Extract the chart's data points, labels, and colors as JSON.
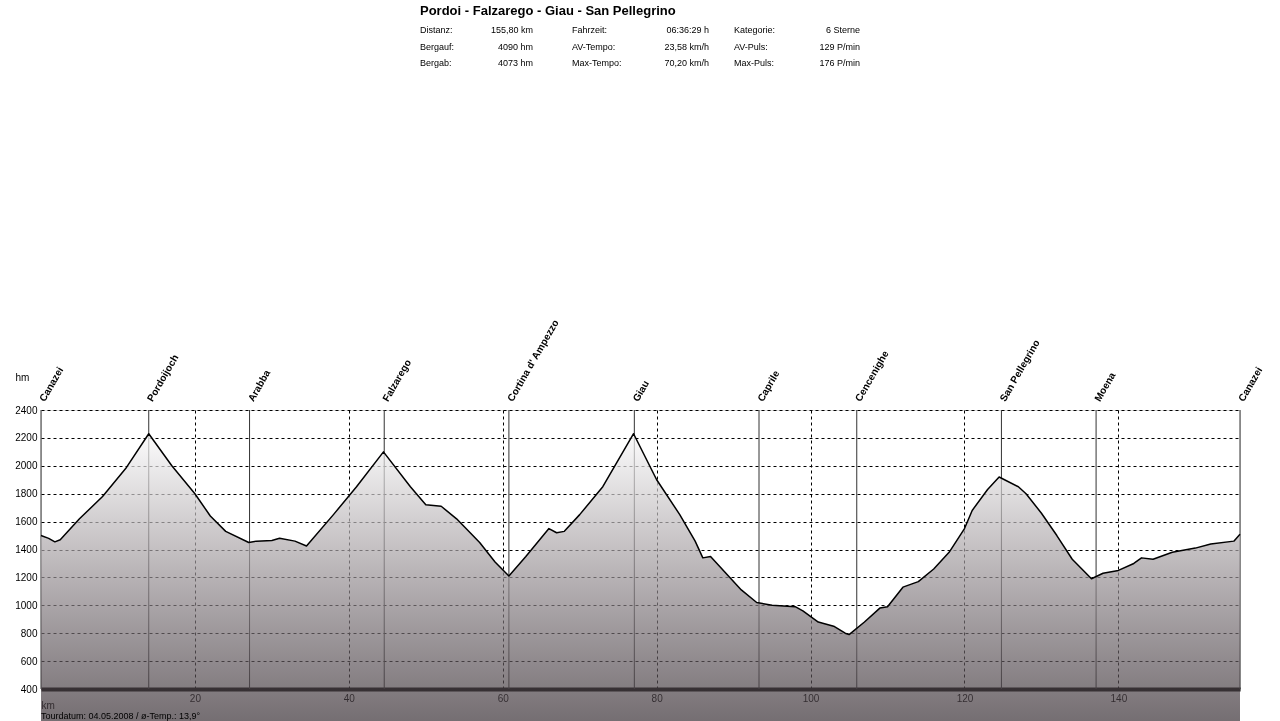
{
  "chart_data": {
    "type": "area",
    "title": "Pordoi - Falzarego - Giau - San Pellegrino",
    "xlabel": "km",
    "ylabel": "hm",
    "xlim": [
      0,
      155.8
    ],
    "xticks": [
      20,
      40,
      60,
      80,
      100,
      120,
      140
    ],
    "ylim": [
      400,
      2400
    ],
    "yticks": [
      400,
      600,
      800,
      1000,
      1200,
      1400,
      1600,
      1800,
      2000,
      2200,
      2400
    ],
    "grid": true,
    "series": [
      {
        "color": "#000000",
        "x": [
          0,
          1,
          1.8,
          2.5,
          5,
          8,
          11,
          14,
          17,
          20,
          22,
          24,
          27,
          28,
          30,
          31,
          33,
          34.5,
          38,
          41,
          44.5,
          48,
          50,
          52,
          54,
          57,
          59,
          60.8,
          63,
          66,
          67,
          68,
          70,
          73,
          77,
          80,
          83,
          85,
          86,
          87,
          89,
          91,
          93,
          95,
          98,
          99,
          101,
          103,
          104.5,
          105,
          107,
          109,
          110,
          112,
          113,
          114,
          116,
          118,
          120,
          121,
          123,
          124.5,
          127,
          128,
          130,
          132,
          134,
          136.5,
          138,
          140,
          142,
          143,
          144.5,
          147,
          150,
          152,
          155,
          155.8
        ],
        "values": [
          1500,
          1480,
          1455,
          1470,
          1620,
          1780,
          1980,
          2230,
          2000,
          1800,
          1640,
          1530,
          1450,
          1460,
          1465,
          1480,
          1460,
          1425,
          1650,
          1850,
          2100,
          1850,
          1720,
          1710,
          1620,
          1450,
          1310,
          1210,
          1350,
          1550,
          1520,
          1530,
          1650,
          1850,
          2230,
          1900,
          1650,
          1460,
          1340,
          1350,
          1230,
          1110,
          1020,
          1000,
          990,
          960,
          880,
          850,
          800,
          790,
          880,
          980,
          990,
          1130,
          1150,
          1170,
          1260,
          1380,
          1550,
          1680,
          1830,
          1920,
          1850,
          1800,
          1660,
          1500,
          1330,
          1190,
          1230,
          1250,
          1300,
          1340,
          1330,
          1380,
          1410,
          1440,
          1460,
          1510
        ]
      }
    ],
    "ref_lines": [
      {
        "axis": "x",
        "value": 0,
        "label": "Canazei",
        "color": "#333333"
      },
      {
        "axis": "x",
        "value": 14,
        "label": "Pordoijoch",
        "color": "#333333"
      },
      {
        "axis": "x",
        "value": 27.1,
        "label": "Arabba",
        "color": "#333333"
      },
      {
        "axis": "x",
        "value": 44.6,
        "label": "Falzarego",
        "color": "#333333"
      },
      {
        "axis": "x",
        "value": 60.8,
        "label": "Cortina d' Ampezzo",
        "color": "#333333"
      },
      {
        "axis": "x",
        "value": 77.1,
        "label": "Giau",
        "color": "#333333"
      },
      {
        "axis": "x",
        "value": 93.3,
        "label": "Caprile",
        "color": "#333333"
      },
      {
        "axis": "x",
        "value": 106,
        "label": "Cencenighe",
        "color": "#333333"
      },
      {
        "axis": "x",
        "value": 124.8,
        "label": "San Pellegrino",
        "color": "#333333"
      },
      {
        "axis": "x",
        "value": 137.1,
        "label": "Moena",
        "color": "#333333"
      },
      {
        "axis": "x",
        "value": 155.8,
        "label": "Canazei",
        "color": "#333333"
      }
    ],
    "annotations": [
      "Distanz:",
      "155,80 km",
      "Fahrzeit:",
      "06:36:29 h",
      "Kategorie:",
      "6 Sterne",
      "Bergauf:",
      "4090 hm",
      "AV-Tempo:",
      "23,58 km/h",
      "AV-Puls:",
      "129 P/min",
      "Bergab:",
      "4073 hm",
      "Max-Tempo:",
      "70,20 km/h",
      "Max-Puls:",
      "176 P/min",
      "Tourdatum: 04.05.2008  /  ø-Temp.: 13,9°"
    ]
  }
}
